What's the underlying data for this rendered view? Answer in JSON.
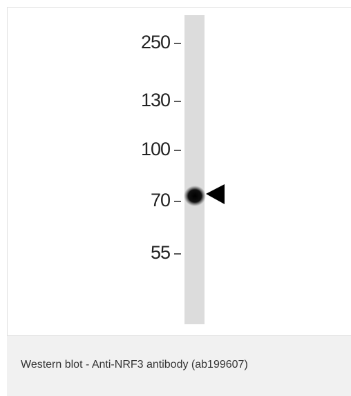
{
  "figure": {
    "markers": [
      "250",
      "130",
      "100",
      "70",
      "55"
    ]
  },
  "caption": "Western blot - Anti-NRF3 antibody (ab199607)"
}
